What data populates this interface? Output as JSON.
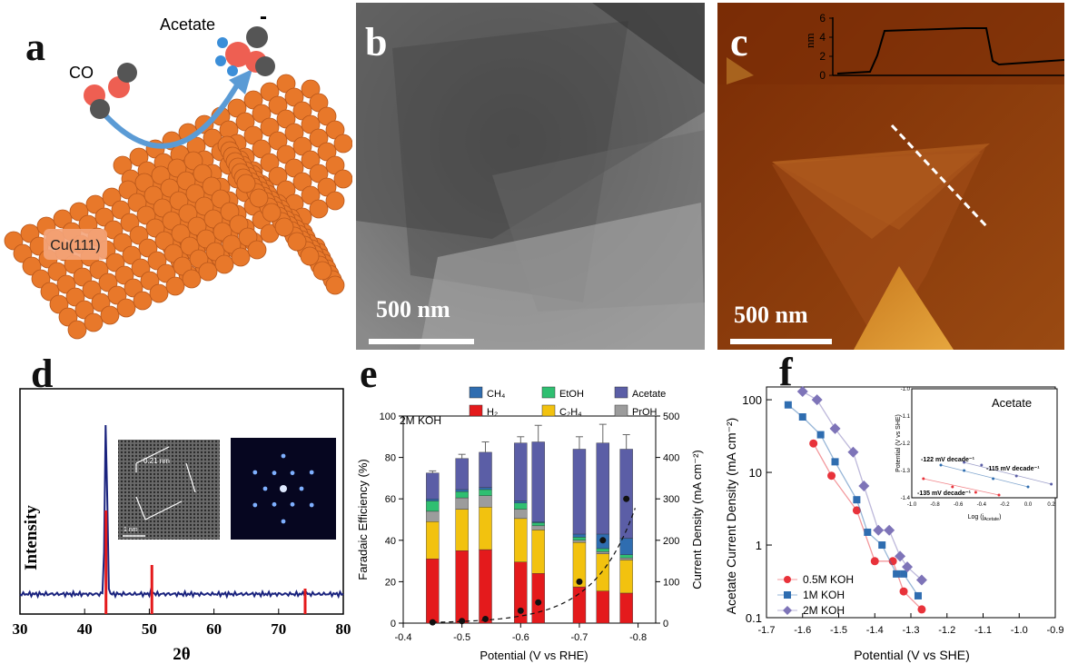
{
  "panel_labels": {
    "a": "a",
    "b": "b",
    "c": "c",
    "d": "d",
    "e": "e",
    "f": "f"
  },
  "panel_a": {
    "co": "CO",
    "acetate": "Acetate",
    "charge": "-",
    "surface": "Cu(111)",
    "colors": {
      "cu": "#e8782a",
      "arrow": "#5b9bd5",
      "oxygen": "#ee5f52",
      "carbon": "#555555",
      "hydrogen": "#3b8ed8"
    }
  },
  "panel_b": {
    "scale": "500 nm"
  },
  "panel_c": {
    "scale": "500 nm",
    "inset": {
      "ylabel": "nm",
      "ticks": [
        "0",
        "2",
        "4",
        "6"
      ]
    }
  },
  "panel_d": {
    "xlabel": "2θ",
    "ylabel": "Intensity",
    "inset_label": "0.21 nm",
    "inset_scale": "1 nm",
    "xticks": [
      "30",
      "40",
      "50",
      "60",
      "70",
      "80"
    ],
    "peaks_deg": [
      43.3,
      50.4,
      74.1
    ]
  },
  "chart_data": [
    {
      "type": "bar",
      "title": "2M KOH",
      "xlabel": "Potential (V vs RHE)",
      "ylabel": "Faradaic Efficiency (%)",
      "y2label": "Current Density (mA cm⁻²)",
      "xlim": [
        -0.4,
        -0.83
      ],
      "ylim": [
        0,
        100
      ],
      "y2lim": [
        0,
        500
      ],
      "xticks": [
        "-0.4",
        "-0.5",
        "-0.6",
        "-0.7",
        "-0.8"
      ],
      "yticks": [
        "0",
        "20",
        "40",
        "60",
        "80",
        "100"
      ],
      "y2ticks": [
        "0",
        "100",
        "200",
        "300",
        "400",
        "500"
      ],
      "legend": [
        "CH₄",
        "EtOH",
        "Acetate",
        "H₂",
        "C₂H₄",
        "PrOH"
      ],
      "colors": {
        "H2": "#e41a1c",
        "C2H4": "#f2c20f",
        "PrOH": "#9c9c9c",
        "EtOH": "#2fbf71",
        "CH4": "#2f6db0",
        "Acetate": "#5b5ea6"
      },
      "x": [
        -0.45,
        -0.5,
        -0.54,
        -0.6,
        -0.63,
        -0.7,
        -0.74,
        -0.78
      ],
      "series": [
        {
          "name": "H2",
          "values": [
            31,
            35,
            35.5,
            29.5,
            24,
            17.5,
            15.5,
            14.5
          ]
        },
        {
          "name": "C2H4",
          "values": [
            18,
            20,
            20.5,
            21,
            21,
            21.5,
            18,
            16
          ]
        },
        {
          "name": "PrOH",
          "values": [
            5,
            5.5,
            5.5,
            4.5,
            2,
            1,
            1,
            1
          ]
        },
        {
          "name": "EtOH",
          "values": [
            5,
            3,
            3,
            3,
            1.5,
            1.5,
            1.5,
            1.5
          ]
        },
        {
          "name": "CH4",
          "values": [
            1,
            1,
            1,
            1,
            0.5,
            1.5,
            7,
            8
          ]
        },
        {
          "name": "Acetate",
          "values": [
            12.5,
            15,
            17,
            28,
            38.5,
            41,
            44,
            43
          ]
        }
      ],
      "errors": [
        1,
        2,
        5,
        3,
        8,
        6,
        9,
        7
      ],
      "current_density": {
        "x": [
          -0.45,
          -0.5,
          -0.54,
          -0.6,
          -0.63,
          -0.7,
          -0.74,
          -0.78
        ],
        "values": [
          2,
          5,
          10,
          30,
          50,
          100,
          200,
          300
        ]
      }
    },
    {
      "type": "scatter",
      "xlabel": "Potential (V vs SHE)",
      "ylabel": "Acetate Current Density (mA cm⁻²)",
      "xlim": [
        -1.7,
        -0.9
      ],
      "ylim": [
        0.1,
        150
      ],
      "yscale": "log",
      "xticks": [
        "-1.7",
        "-1.6",
        "-1.5",
        "-1.4",
        "-1.3",
        "-1.2",
        "-1.1",
        "-1.0",
        "-0.9"
      ],
      "yticks": [
        "0.1",
        "1",
        "10",
        "100"
      ],
      "series": [
        {
          "name": "0.5M KOH",
          "color": "#e8323a",
          "x": [
            -1.57,
            -1.52,
            -1.45,
            -1.4,
            -1.35,
            -1.32,
            -1.27
          ],
          "values": [
            25,
            9,
            3,
            0.6,
            0.6,
            0.23,
            0.13
          ]
        },
        {
          "name": "1M KOH",
          "color": "#2f6db0",
          "x": [
            -1.64,
            -1.6,
            -1.55,
            -1.51,
            -1.45,
            -1.42,
            -1.38,
            -1.34,
            -1.32,
            -1.28
          ],
          "values": [
            85,
            58,
            33,
            14,
            4.2,
            1.5,
            1.0,
            0.4,
            0.4,
            0.2
          ]
        },
        {
          "name": "2M KOH",
          "color": "#7e74b8",
          "x": [
            -1.6,
            -1.56,
            -1.51,
            -1.46,
            -1.43,
            -1.39,
            -1.36,
            -1.33,
            -1.31,
            -1.27
          ],
          "values": [
            130,
            100,
            40,
            19,
            6.5,
            1.6,
            1.6,
            0.7,
            0.5,
            0.33
          ]
        }
      ],
      "inset": {
        "title": "Acetate",
        "ylabel": "Potential (V vs SHE)",
        "xlabel": "Log (jₐᶜᵉᵗᵃᵗᵉ)",
        "xlabel_text": "Log (j",
        "xlabel_sub": "Acetate",
        "xlabel_tail": ")",
        "annotations": [
          {
            "text": "-122 mV decade⁻¹",
            "color": "#2f6db0"
          },
          {
            "text": "-115 mV decade⁻¹",
            "color": "#5b5ea6"
          },
          {
            "text": "-135 mV decade⁻¹",
            "color": "#e8323a"
          }
        ],
        "xticks": [
          "-1.0",
          "-0.8",
          "-0.6",
          "-0.4",
          "-0.2",
          "0.0",
          "0.2"
        ],
        "yticks": [
          "-1.0",
          "-1.1",
          "-1.2",
          "-1.3",
          "-1.4"
        ]
      }
    }
  ]
}
